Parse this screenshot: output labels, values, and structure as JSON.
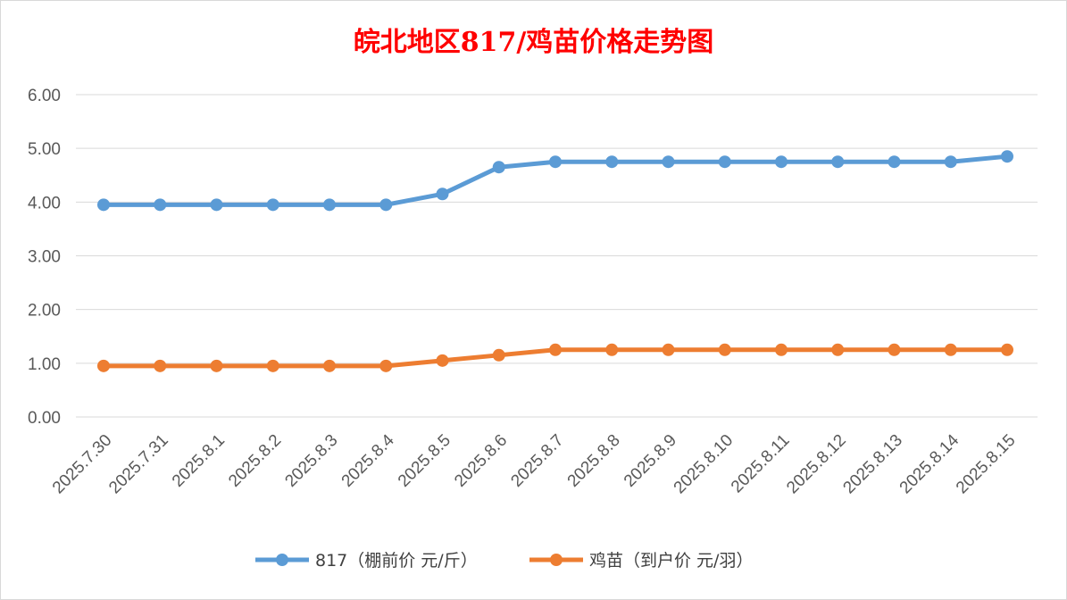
{
  "chart_data": {
    "type": "line",
    "title": "皖北地区817/鸡苗价格走势图",
    "categories": [
      "2025.7.30",
      "2025.7.31",
      "2025.8.1",
      "2025.8.2",
      "2025.8.3",
      "2025.8.4",
      "2025.8.5",
      "2025.8.6",
      "2025.8.7",
      "2025.8.8",
      "2025.8.9",
      "2025.8.10",
      "2025.8.11",
      "2025.8.12",
      "2025.8.13",
      "2025.8.14",
      "2025.8.15"
    ],
    "yticks": [
      "0.00",
      "1.00",
      "2.00",
      "3.00",
      "4.00",
      "5.00",
      "6.00"
    ],
    "ylim": [
      0,
      6
    ],
    "grid": true,
    "legend_position": "bottom",
    "series": [
      {
        "name": "817（棚前价 元/斤）",
        "color": "#5b9bd5",
        "values": [
          3.95,
          3.95,
          3.95,
          3.95,
          3.95,
          3.95,
          4.15,
          4.65,
          4.75,
          4.75,
          4.75,
          4.75,
          4.75,
          4.75,
          4.75,
          4.75,
          4.85
        ]
      },
      {
        "name": "鸡苗（到户价 元/羽）",
        "color": "#ed7d31",
        "values": [
          0.95,
          0.95,
          0.95,
          0.95,
          0.95,
          0.95,
          1.05,
          1.15,
          1.25,
          1.25,
          1.25,
          1.25,
          1.25,
          1.25,
          1.25,
          1.25,
          1.25
        ]
      }
    ]
  }
}
